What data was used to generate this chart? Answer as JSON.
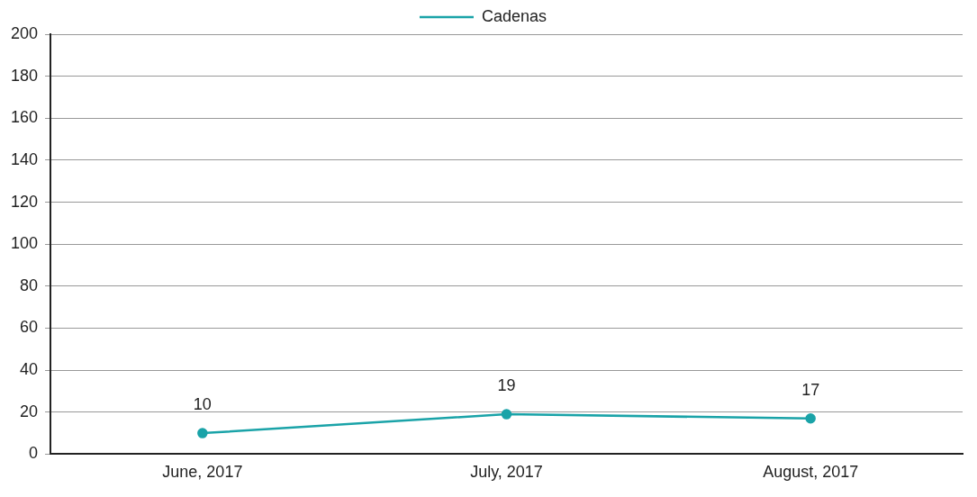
{
  "chart_data": {
    "type": "line",
    "categories": [
      "June, 2017",
      "July, 2017",
      "August, 2017"
    ],
    "series": [
      {
        "name": "Cadenas",
        "color": "#1aa3a8",
        "values": [
          10,
          19,
          17
        ]
      }
    ],
    "ylim": [
      0,
      200
    ],
    "yticks": [
      0,
      20,
      40,
      60,
      80,
      100,
      120,
      140,
      160,
      180,
      200
    ],
    "grid": "y",
    "legend": "top",
    "marker": "circle",
    "line_style": "solid",
    "data_labels": true
  }
}
